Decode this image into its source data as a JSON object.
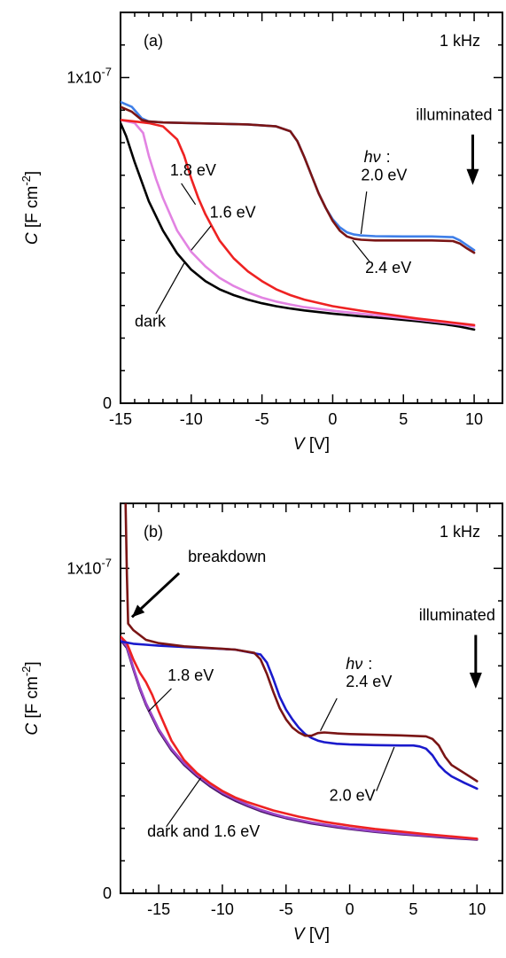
{
  "chart_data": [
    {
      "type": "line",
      "panel_label": "(a)",
      "frequency": "1 kHz",
      "xlabel_var": "V",
      "xlabel_unit": " [V]",
      "ylabel_var": "C",
      "ylabel_unit": " [F cm",
      "ylabel_exp": "-2",
      "ylabel_close": "]",
      "xlim": [
        -15,
        12
      ],
      "ylim": [
        0,
        1.2e-07
      ],
      "x_ticks": [
        -15,
        -10,
        -5,
        0,
        5,
        10
      ],
      "x_tick_labels": [
        "-15",
        "-10",
        "-5",
        "0",
        "5",
        "10"
      ],
      "x_minor_step": 1,
      "y_minor_step": 1e-08,
      "y_ticks": [
        0,
        1e-07
      ],
      "y_tick_labels": [
        {
          "base": "0",
          "exp": ""
        },
        {
          "base": "1x10",
          "exp": "-7"
        }
      ],
      "legend_title": "illuminated",
      "hv_label": "hν",
      "hv_colon": ":",
      "series": [
        {
          "label": "dark",
          "color": "#000000",
          "x": [
            -15,
            -14.6,
            -14,
            -13,
            -12,
            -11,
            -10,
            -9,
            -8,
            -7,
            -6,
            -5,
            -4,
            -3,
            -2,
            0,
            2,
            4,
            6,
            8,
            9,
            10
          ],
          "y": [
            8.6e-08,
            8.2e-08,
            7.4e-08,
            6.2e-08,
            5.3e-08,
            4.6e-08,
            4.1e-08,
            3.75e-08,
            3.5e-08,
            3.32e-08,
            3.18e-08,
            3.07e-08,
            2.98e-08,
            2.91e-08,
            2.85e-08,
            2.75e-08,
            2.67e-08,
            2.6e-08,
            2.52e-08,
            2.42e-08,
            2.35e-08,
            2.26e-08
          ]
        },
        {
          "label": "1.6 eV",
          "color": "#e283e2",
          "x": [
            -15,
            -14,
            -13.4,
            -13,
            -12.5,
            -12,
            -11,
            -10,
            -9,
            -8,
            -7,
            -6,
            -5,
            -4,
            -3,
            -2,
            0,
            2,
            4,
            6,
            8,
            10
          ],
          "y": [
            8.7e-08,
            8.6e-08,
            8.3e-08,
            7.6e-08,
            6.9e-08,
            6.3e-08,
            5.3e-08,
            4.65e-08,
            4.2e-08,
            3.85e-08,
            3.6e-08,
            3.4e-08,
            3.24e-08,
            3.12e-08,
            3.03e-08,
            2.95e-08,
            2.84e-08,
            2.75e-08,
            2.66e-08,
            2.57e-08,
            2.47e-08,
            2.36e-08
          ]
        },
        {
          "label": "1.8 eV",
          "color": "#ee2222",
          "x": [
            -15,
            -14,
            -13,
            -12,
            -11,
            -10.5,
            -10,
            -9.5,
            -9,
            -8,
            -7,
            -6,
            -5,
            -4,
            -3,
            -2,
            0,
            2,
            4,
            6,
            8,
            10
          ],
          "y": [
            8.7e-08,
            8.65e-08,
            8.6e-08,
            8.5e-08,
            8.1e-08,
            7.6e-08,
            6.9e-08,
            6.3e-08,
            5.8e-08,
            5e-08,
            4.45e-08,
            4.05e-08,
            3.75e-08,
            3.5e-08,
            3.32e-08,
            3.18e-08,
            2.98e-08,
            2.84e-08,
            2.72e-08,
            2.6e-08,
            2.5e-08,
            2.4e-08
          ]
        },
        {
          "label": "2.0 eV",
          "color": "#3f7fe8",
          "x": [
            -15,
            -14.2,
            -13.5,
            -13,
            -12,
            -10,
            -8,
            -6,
            -4,
            -3,
            -2.5,
            -2,
            -1.5,
            -1,
            -0.5,
            0,
            0.5,
            1,
            1.5,
            2,
            3,
            5,
            7,
            8.5,
            9,
            9.5,
            10
          ],
          "y": [
            9.25e-08,
            9.1e-08,
            8.75e-08,
            8.65e-08,
            8.62e-08,
            8.6e-08,
            8.58e-08,
            8.56e-08,
            8.5e-08,
            8.35e-08,
            8.05e-08,
            7.55e-08,
            7e-08,
            6.45e-08,
            6e-08,
            5.65e-08,
            5.4e-08,
            5.25e-08,
            5.18e-08,
            5.15e-08,
            5.13e-08,
            5.12e-08,
            5.12e-08,
            5.1e-08,
            5e-08,
            4.85e-08,
            4.7e-08
          ]
        },
        {
          "label": "2.4 eV",
          "color": "#7a1515",
          "x": [
            -15,
            -14.2,
            -13.5,
            -13,
            -12,
            -10,
            -8,
            -6,
            -4,
            -3,
            -2.5,
            -2,
            -1.5,
            -1,
            -0.5,
            0,
            0.5,
            1,
            1.5,
            2,
            3,
            5,
            7,
            8.5,
            9,
            9.5,
            10
          ],
          "y": [
            9.1e-08,
            8.95e-08,
            8.7e-08,
            8.65e-08,
            8.62e-08,
            8.6e-08,
            8.58e-08,
            8.56e-08,
            8.5e-08,
            8.35e-08,
            8.05e-08,
            7.55e-08,
            7e-08,
            6.45e-08,
            6e-08,
            5.6e-08,
            5.3e-08,
            5.12e-08,
            5.05e-08,
            5.02e-08,
            5e-08,
            5e-08,
            5e-08,
            4.98e-08,
            4.9e-08,
            4.75e-08,
            4.62e-08
          ]
        }
      ],
      "annotations": [
        {
          "text": "1.8 eV",
          "tx": -11.5,
          "ty": 7e-08,
          "lx1": -10.7,
          "ly1": 6.75e-08,
          "lx2": -9.7,
          "ly2": 6.1e-08
        },
        {
          "text": "1.6 eV",
          "tx": -8.7,
          "ty": 5.7e-08,
          "lx1": -8.6,
          "ly1": 5.45e-08,
          "lx2": -10.0,
          "ly2": 4.7e-08
        },
        {
          "text": "dark",
          "tx": -14.0,
          "ty": 2.35e-08,
          "lx1": -12.5,
          "ly1": 2.75e-08,
          "lx2": -10.5,
          "ly2": 4.3e-08
        },
        {
          "text": "2.4 eV",
          "tx": 2.3,
          "ty": 4e-08,
          "lx1": 2.6,
          "ly1": 4.35e-08,
          "lx2": 1.4,
          "ly2": 5e-08
        }
      ],
      "hv_pos": {
        "tx": 2.2,
        "ty": 7.4e-08
      },
      "hv_value": {
        "text": "2.0 eV",
        "tx": 2.0,
        "ty": 6.85e-08,
        "lx1": 2.4,
        "ly1": 6.5e-08,
        "lx2": 2.0,
        "ly2": 5.2e-08
      },
      "illum_pos": {
        "tx": 9.9,
        "ty": 8.7e-08,
        "ax": 9.9,
        "ay1": 8.25e-08,
        "ay2": 6.7e-08
      }
    },
    {
      "type": "line",
      "panel_label": "(b)",
      "frequency": "1 kHz",
      "xlabel_var": "V",
      "xlabel_unit": " [V]",
      "ylabel_var": "C",
      "ylabel_unit": " [F cm",
      "ylabel_exp": "-2",
      "ylabel_close": "]",
      "xlim": [
        -18,
        12
      ],
      "ylim": [
        0,
        1.2e-07
      ],
      "x_ticks": [
        -15,
        -10,
        -5,
        0,
        5,
        10
      ],
      "x_tick_labels": [
        "-15",
        "-10",
        "-5",
        "0",
        "5",
        "10"
      ],
      "x_minor_step": 1,
      "y_minor_step": 1e-08,
      "y_ticks": [
        0,
        1e-07
      ],
      "y_tick_labels": [
        {
          "base": "0",
          "exp": ""
        },
        {
          "base": "1x10",
          "exp": "-7"
        }
      ],
      "legend_title": "illuminated",
      "hv_label": "hν",
      "hv_colon": ":",
      "series": [
        {
          "label": "dark",
          "color": "#4a1a6a",
          "x": [
            -18,
            -17.5,
            -17,
            -16.5,
            -16,
            -15,
            -14,
            -13,
            -12,
            -11,
            -10,
            -9,
            -8,
            -7,
            -6,
            -5,
            -3,
            -1,
            0,
            2,
            4,
            6,
            8,
            10
          ],
          "y": [
            7.8e-08,
            7.55e-08,
            6.9e-08,
            6.3e-08,
            5.8e-08,
            5e-08,
            4.4e-08,
            3.95e-08,
            3.6e-08,
            3.3e-08,
            3.05e-08,
            2.85e-08,
            2.68e-08,
            2.53e-08,
            2.41e-08,
            2.31e-08,
            2.15e-08,
            2.03e-08,
            1.98e-08,
            1.89e-08,
            1.82e-08,
            1.76e-08,
            1.7e-08,
            1.65e-08
          ]
        },
        {
          "label": "1.6 eV",
          "color": "#9a45c8",
          "x": [
            -18,
            -17.5,
            -17,
            -16.5,
            -16,
            -15,
            -14,
            -13,
            -12,
            -11,
            -10,
            -9,
            -8,
            -7,
            -6,
            -5,
            -3,
            -1,
            0,
            2,
            4,
            6,
            8,
            10
          ],
          "y": [
            7.85e-08,
            7.6e-08,
            6.95e-08,
            6.35e-08,
            5.85e-08,
            5.05e-08,
            4.45e-08,
            4e-08,
            3.65e-08,
            3.35e-08,
            3.1e-08,
            2.9e-08,
            2.72e-08,
            2.57e-08,
            2.45e-08,
            2.34e-08,
            2.18e-08,
            2.06e-08,
            2e-08,
            1.91e-08,
            1.84e-08,
            1.78e-08,
            1.72e-08,
            1.67e-08
          ]
        },
        {
          "label": "1.8 eV",
          "color": "#ee2222",
          "x": [
            -18,
            -17.5,
            -17,
            -16.5,
            -16,
            -15.5,
            -15,
            -14,
            -13,
            -12,
            -11,
            -10,
            -9,
            -8,
            -6,
            -4,
            -2,
            0,
            2,
            4,
            6,
            8,
            10
          ],
          "y": [
            7.9e-08,
            7.7e-08,
            7.2e-08,
            6.8e-08,
            6.5e-08,
            6.1e-08,
            5.6e-08,
            4.7e-08,
            4.1e-08,
            3.7e-08,
            3.4e-08,
            3.15e-08,
            2.95e-08,
            2.8e-08,
            2.55e-08,
            2.36e-08,
            2.2e-08,
            2.08e-08,
            1.98e-08,
            1.9e-08,
            1.82e-08,
            1.75e-08,
            1.68e-08
          ]
        },
        {
          "label": "2.0 eV",
          "color": "#1a1acc",
          "x": [
            -18,
            -17,
            -16,
            -15,
            -13,
            -11,
            -9,
            -7,
            -6.5,
            -6,
            -5.5,
            -5,
            -4.5,
            -4,
            -3.5,
            -3,
            -2.5,
            -2,
            -1,
            0,
            2,
            4,
            5,
            5.5,
            6,
            6.5,
            7,
            7.5,
            8,
            9,
            10
          ],
          "y": [
            7.75e-08,
            7.68e-08,
            7.65e-08,
            7.62e-08,
            7.58e-08,
            7.54e-08,
            7.5e-08,
            7.35e-08,
            7.1e-08,
            6.6e-08,
            6.05e-08,
            5.65e-08,
            5.35e-08,
            5.1e-08,
            4.9e-08,
            4.78e-08,
            4.7e-08,
            4.65e-08,
            4.6e-08,
            4.58e-08,
            4.56e-08,
            4.55e-08,
            4.55e-08,
            4.52e-08,
            4.45e-08,
            4.25e-08,
            3.95e-08,
            3.75e-08,
            3.6e-08,
            3.4e-08,
            3.22e-08
          ]
        },
        {
          "label": "2.4 eV",
          "color": "#7a1515",
          "x": [
            -17.6,
            -17.5,
            -17.4,
            -17,
            -16,
            -15,
            -13,
            -11,
            -9,
            -7.5,
            -7,
            -6.5,
            -6,
            -5.5,
            -5,
            -4.5,
            -4,
            -3.5,
            -3,
            -2.5,
            -2,
            -1,
            0,
            2,
            4,
            6,
            6.5,
            7,
            7.5,
            8,
            9,
            10
          ],
          "y": [
            1.2e-07,
            9.8e-08,
            8.3e-08,
            8.1e-08,
            7.8e-08,
            7.7e-08,
            7.6e-08,
            7.55e-08,
            7.5e-08,
            7.4e-08,
            7.2e-08,
            6.75e-08,
            6.2e-08,
            5.7e-08,
            5.35e-08,
            5.1e-08,
            4.95e-08,
            4.85e-08,
            4.85e-08,
            4.93e-08,
            4.95e-08,
            4.92e-08,
            4.9e-08,
            4.88e-08,
            4.86e-08,
            4.83e-08,
            4.75e-08,
            4.55e-08,
            4.2e-08,
            3.95e-08,
            3.7e-08,
            3.45e-08
          ]
        }
      ],
      "annotations": [
        {
          "text": "breakdown",
          "tx": -12.7,
          "ty": 1.02e-07,
          "arrow": true,
          "lx1": -13.4,
          "ly1": 9.85e-08,
          "lx2": -17.1,
          "ly2": 8.5e-08
        },
        {
          "text": "1.8 eV",
          "tx": -14.3,
          "ty": 6.55e-08,
          "lx1": -14.0,
          "ly1": 6.3e-08,
          "lx2": -15.8,
          "ly2": 5.6e-08
        },
        {
          "text": "dark and 1.6 eV",
          "tx": -15.9,
          "ty": 1.75e-08,
          "lx1": -14.4,
          "ly1": 2.05e-08,
          "lx2": -11.7,
          "ly2": 3.55e-08
        },
        {
          "text": "2.0 eV",
          "tx": -1.6,
          "ty": 2.85e-08,
          "lx1": 2.1,
          "ly1": 3.15e-08,
          "lx2": 3.5,
          "ly2": 4.5e-08
        }
      ],
      "hv_pos": {
        "tx": -0.3,
        "ty": 6.9e-08
      },
      "hv_value": {
        "text": "2.4 eV",
        "tx": -0.3,
        "ty": 6.35e-08,
        "lx1": -1.0,
        "ly1": 6e-08,
        "lx2": -2.3,
        "ly2": 5e-08
      },
      "illum_pos": {
        "tx": 9.9,
        "ty": 8.4e-08,
        "ax": 9.9,
        "ay1": 7.95e-08,
        "ay2": 6.3e-08
      }
    }
  ]
}
